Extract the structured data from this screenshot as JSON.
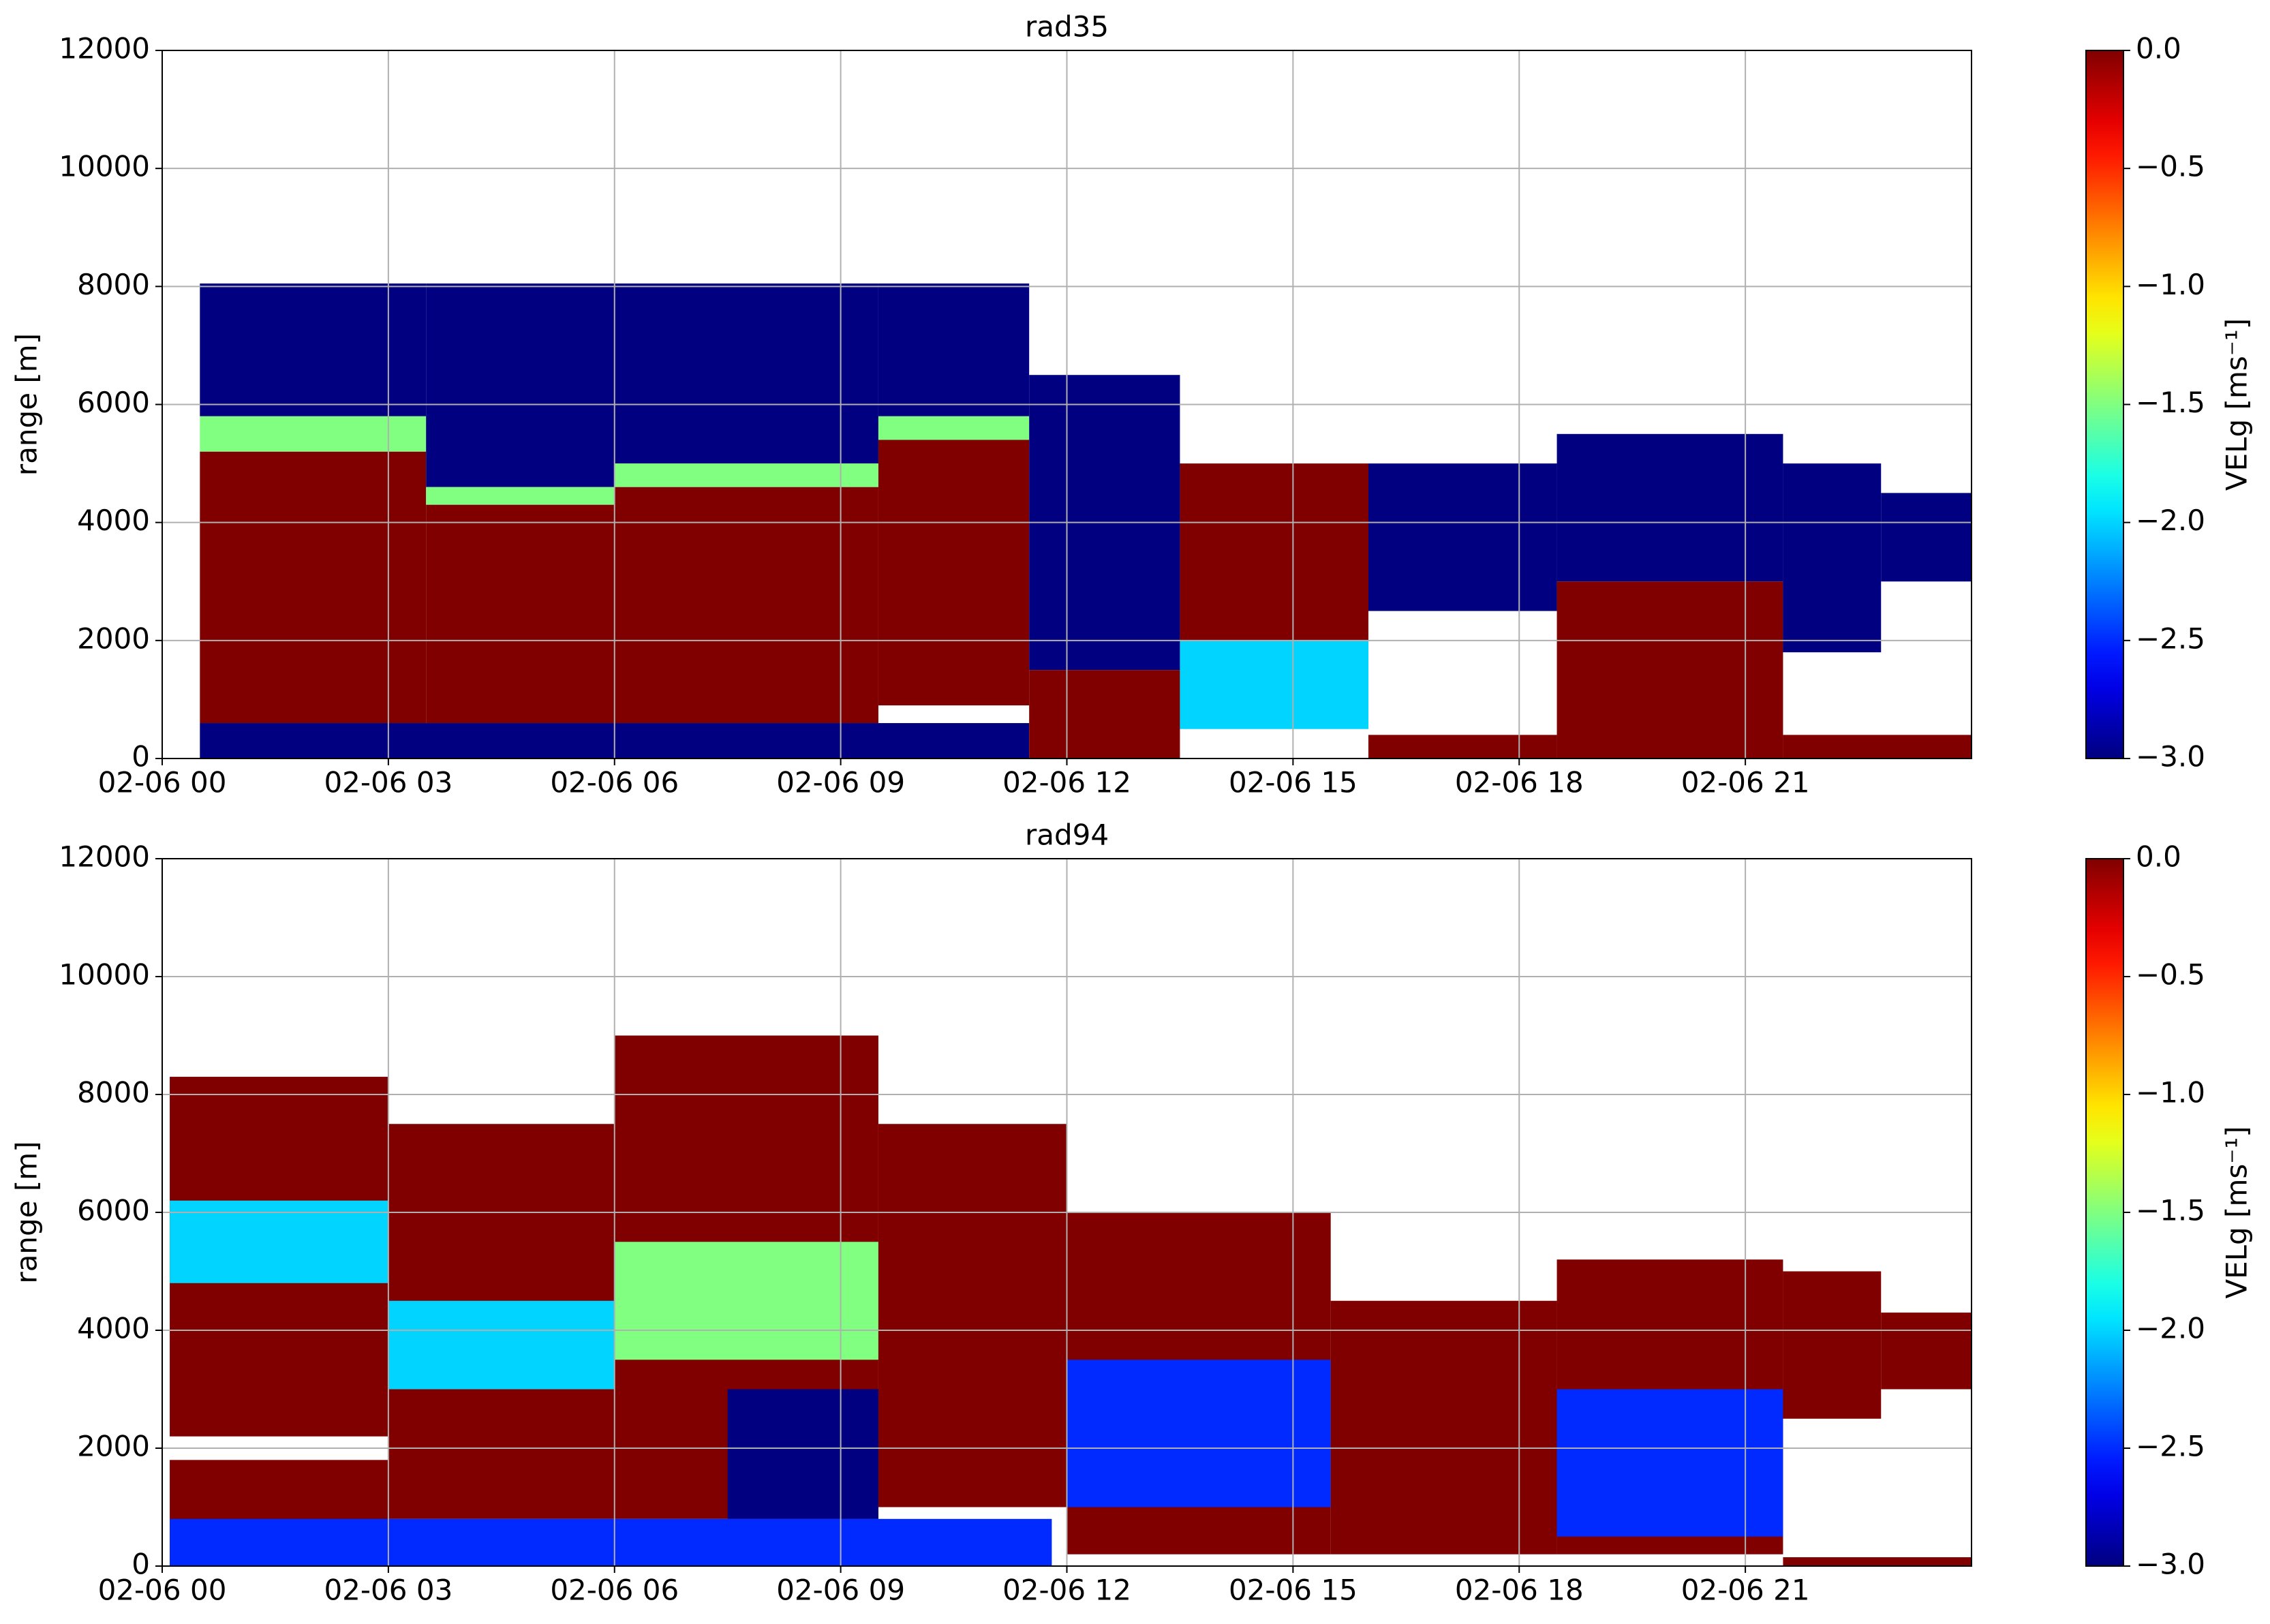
{
  "chart_data": [
    {
      "type": "heatmap",
      "title": "rad35",
      "y_label": "range [m]",
      "xlim": [
        0,
        24
      ],
      "xticks": [
        {
          "value": 0,
          "label": "02-06 00"
        },
        {
          "value": 3,
          "label": "02-06 03"
        },
        {
          "value": 6,
          "label": "02-06 06"
        },
        {
          "value": 9,
          "label": "02-06 09"
        },
        {
          "value": 12,
          "label": "02-06 12"
        },
        {
          "value": 15,
          "label": "02-06 15"
        },
        {
          "value": 18,
          "label": "02-06 18"
        },
        {
          "value": 21,
          "label": "02-06 21"
        }
      ],
      "ylim": [
        0,
        12000
      ],
      "yticks": [
        0,
        2000,
        4000,
        6000,
        8000,
        10000,
        12000
      ],
      "grid": true,
      "colorbar": {
        "label": "VELg [ms⁻¹]",
        "clim": [
          -3,
          0
        ],
        "ticks": [
          {
            "value": -3,
            "label": "−3.0"
          },
          {
            "value": -2.5,
            "label": "−2.5"
          },
          {
            "value": -2,
            "label": "−2.0"
          },
          {
            "value": -1.5,
            "label": "−1.5"
          },
          {
            "value": -1,
            "label": "−1.0"
          },
          {
            "value": -0.5,
            "label": "−0.5"
          },
          {
            "value": 0,
            "label": "0.0"
          }
        ]
      },
      "cells": [
        {
          "x0": 0.5,
          "x1": 3.5,
          "y0": 5800,
          "y1": 8050,
          "v": -3
        },
        {
          "x0": 0.5,
          "x1": 3.5,
          "y0": 5200,
          "y1": 5800,
          "v": -1.5
        },
        {
          "x0": 0.5,
          "x1": 3.5,
          "y0": 600,
          "y1": 5200,
          "v": 0
        },
        {
          "x0": 3.5,
          "x1": 6,
          "y0": 4600,
          "y1": 8050,
          "v": -3
        },
        {
          "x0": 3.5,
          "x1": 6,
          "y0": 4300,
          "y1": 4600,
          "v": -1.5
        },
        {
          "x0": 3.5,
          "x1": 6,
          "y0": 600,
          "y1": 4300,
          "v": 0
        },
        {
          "x0": 6,
          "x1": 9.5,
          "y0": 5000,
          "y1": 8050,
          "v": -3
        },
        {
          "x0": 6,
          "x1": 9.5,
          "y0": 4600,
          "y1": 5000,
          "v": -1.5
        },
        {
          "x0": 6,
          "x1": 9.5,
          "y0": 600,
          "y1": 4600,
          "v": 0
        },
        {
          "x0": 9.5,
          "x1": 11.5,
          "y0": 5800,
          "y1": 8050,
          "v": -3
        },
        {
          "x0": 9.5,
          "x1": 11.5,
          "y0": 5400,
          "y1": 5800,
          "v": -1.5
        },
        {
          "x0": 9.5,
          "x1": 11.5,
          "y0": 900,
          "y1": 5400,
          "v": 0
        },
        {
          "x0": 0.5,
          "x1": 11.5,
          "y0": 0,
          "y1": 600,
          "v": -3
        },
        {
          "x0": 11.5,
          "x1": 13.5,
          "y0": 1500,
          "y1": 6500,
          "v": -3
        },
        {
          "x0": 11.5,
          "x1": 13.5,
          "y0": 0,
          "y1": 1500,
          "v": 0
        },
        {
          "x0": 13.5,
          "x1": 16,
          "y0": 2000,
          "y1": 5000,
          "v": 0
        },
        {
          "x0": 13.5,
          "x1": 16,
          "y0": 500,
          "y1": 2000,
          "v": -2
        },
        {
          "x0": 16,
          "x1": 18.5,
          "y0": 0,
          "y1": 400,
          "v": 0
        },
        {
          "x0": 16,
          "x1": 18.5,
          "y0": 2500,
          "y1": 5000,
          "v": -3
        },
        {
          "x0": 18.5,
          "x1": 21.5,
          "y0": 3000,
          "y1": 5500,
          "v": -3
        },
        {
          "x0": 18.5,
          "x1": 21.5,
          "y0": 0,
          "y1": 3000,
          "v": 0
        },
        {
          "x0": 21.5,
          "x1": 22.8,
          "y0": 1800,
          "y1": 5000,
          "v": -3
        },
        {
          "x0": 21.5,
          "x1": 24,
          "y0": 0,
          "y1": 400,
          "v": 0
        },
        {
          "x0": 22.8,
          "x1": 24,
          "y0": 3000,
          "y1": 4500,
          "v": -3
        }
      ]
    },
    {
      "type": "heatmap",
      "title": "rad94",
      "y_label": "range [m]",
      "xlim": [
        0,
        24
      ],
      "xticks": [
        {
          "value": 0,
          "label": "02-06 00"
        },
        {
          "value": 3,
          "label": "02-06 03"
        },
        {
          "value": 6,
          "label": "02-06 06"
        },
        {
          "value": 9,
          "label": "02-06 09"
        },
        {
          "value": 12,
          "label": "02-06 12"
        },
        {
          "value": 15,
          "label": "02-06 15"
        },
        {
          "value": 18,
          "label": "02-06 18"
        },
        {
          "value": 21,
          "label": "02-06 21"
        }
      ],
      "ylim": [
        0,
        12000
      ],
      "yticks": [
        0,
        2000,
        4000,
        6000,
        8000,
        10000,
        12000
      ],
      "grid": true,
      "colorbar": {
        "label": "VELg [ms⁻¹]",
        "clim": [
          -3,
          0
        ],
        "ticks": [
          {
            "value": -3,
            "label": "−3.0"
          },
          {
            "value": -2.5,
            "label": "−2.5"
          },
          {
            "value": -2,
            "label": "−2.0"
          },
          {
            "value": -1.5,
            "label": "−1.5"
          },
          {
            "value": -1,
            "label": "−1.0"
          },
          {
            "value": -0.5,
            "label": "−0.5"
          },
          {
            "value": 0,
            "label": "0.0"
          }
        ]
      },
      "cells": [
        {
          "x0": 0.1,
          "x1": 3,
          "y0": 5000,
          "y1": 8300,
          "v": 0
        },
        {
          "x0": 0.1,
          "x1": 3,
          "y0": 2200,
          "y1": 5000,
          "v": 0
        },
        {
          "x0": 0.1,
          "x1": 3,
          "y0": 4800,
          "y1": 6200,
          "v": -2
        },
        {
          "x0": 0.1,
          "x1": 3,
          "y0": 0,
          "y1": 1800,
          "v": 0
        },
        {
          "x0": 3,
          "x1": 6,
          "y0": 800,
          "y1": 7500,
          "v": 0
        },
        {
          "x0": 3,
          "x1": 6,
          "y0": 3000,
          "y1": 4500,
          "v": -2
        },
        {
          "x0": 6,
          "x1": 9.5,
          "y0": 800,
          "y1": 9000,
          "v": 0
        },
        {
          "x0": 6,
          "x1": 9.5,
          "y0": 3500,
          "y1": 5500,
          "v": -1.5
        },
        {
          "x0": 9.5,
          "x1": 12,
          "y0": 1000,
          "y1": 7500,
          "v": 0
        },
        {
          "x0": 7.5,
          "x1": 9.5,
          "y0": 800,
          "y1": 3000,
          "v": -3
        },
        {
          "x0": 0.1,
          "x1": 11.8,
          "y0": 0,
          "y1": 800,
          "v": -2.5
        },
        {
          "x0": 12,
          "x1": 15.5,
          "y0": 200,
          "y1": 6000,
          "v": 0
        },
        {
          "x0": 12,
          "x1": 15.5,
          "y0": 1000,
          "y1": 3500,
          "v": -2.5
        },
        {
          "x0": 15.5,
          "x1": 18.5,
          "y0": 200,
          "y1": 4500,
          "v": 0
        },
        {
          "x0": 18.5,
          "x1": 21.5,
          "y0": 200,
          "y1": 5200,
          "v": 0
        },
        {
          "x0": 18.5,
          "x1": 21.5,
          "y0": 500,
          "y1": 3000,
          "v": -2.5
        },
        {
          "x0": 21.5,
          "x1": 22.8,
          "y0": 2500,
          "y1": 5000,
          "v": 0
        },
        {
          "x0": 22.8,
          "x1": 24,
          "y0": 3000,
          "y1": 4300,
          "v": 0
        },
        {
          "x0": 21.5,
          "x1": 24,
          "y0": 0,
          "y1": 150,
          "v": 0
        }
      ]
    }
  ]
}
